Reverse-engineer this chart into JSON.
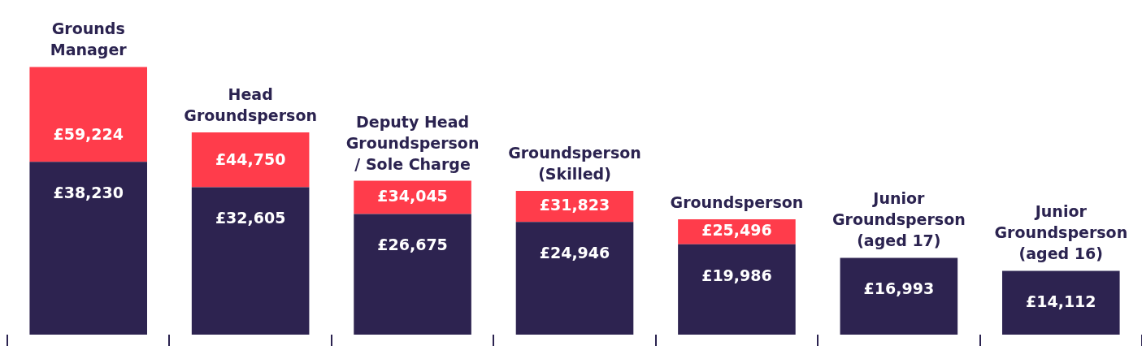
{
  "chart_data": {
    "type": "bar",
    "stacked": true,
    "categories": [
      "Grounds Manager",
      "Head Groundsperson",
      "Deputy Head Groundsperson / Sole Charge",
      "Groundsperson (Skilled)",
      "Groundsperson",
      "Junior Groundsperson (aged 17)",
      "Junior Groundsperson (aged 16)"
    ],
    "series": [
      {
        "color": "#2d2350",
        "values": [
          38230,
          32605,
          26675,
          24946,
          19986,
          16993,
          14112
        ],
        "value_labels": [
          "£38,230",
          "£32,605",
          "£26,675",
          "£24,946",
          "£19,986",
          "£16,993",
          "£14,112"
        ]
      },
      {
        "color": "#ff3c4b",
        "values": [
          20994,
          12145,
          7370,
          6877,
          5510,
          null,
          null
        ]
      }
    ],
    "totals": [
      "£59,224",
      "£44,750",
      "£34,045",
      "£31,823",
      "£25,496",
      null,
      null
    ]
  }
}
